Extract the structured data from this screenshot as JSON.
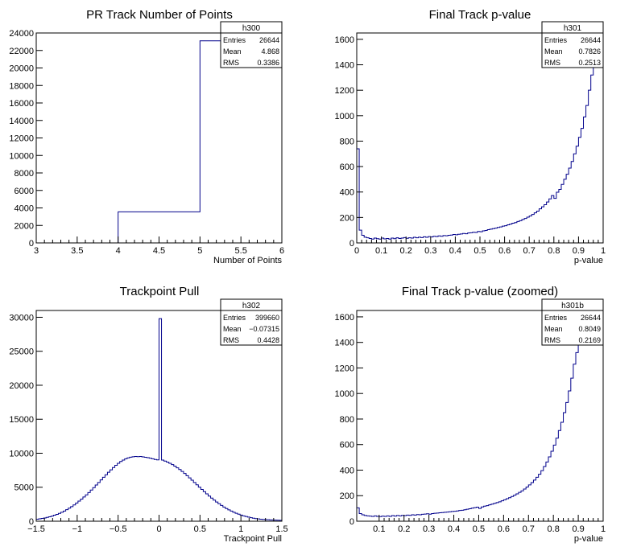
{
  "charts": [
    {
      "title": "PR Track Number of Points",
      "xlabel": "Number of Points",
      "stats": {
        "name": "h300",
        "rows": [
          [
            "Entries",
            "26644"
          ],
          [
            "Mean",
            "4.868"
          ],
          [
            "RMS",
            "0.3386"
          ]
        ]
      },
      "xlim": [
        3,
        6
      ],
      "ylim": [
        0,
        24000
      ],
      "xticks": [
        3,
        3.5,
        4,
        4.5,
        5,
        5.5,
        6
      ],
      "xtick_labels": [
        "3",
        "3.5",
        "4",
        "4.5",
        "5",
        "5.5",
        "6"
      ],
      "yticks": [
        0,
        2000,
        4000,
        6000,
        8000,
        10000,
        12000,
        14000,
        16000,
        18000,
        20000,
        22000,
        24000
      ],
      "ytick_labels": [
        "0",
        "2000",
        "4000",
        "6000",
        "8000",
        "10000",
        "12000",
        "14000",
        "16000",
        "18000",
        "20000",
        "22000",
        "24000"
      ]
    },
    {
      "title": "Final Track p-value",
      "xlabel": "p-value",
      "stats": {
        "name": "h301",
        "rows": [
          [
            "Entries",
            "26644"
          ],
          [
            "Mean",
            "0.7826"
          ],
          [
            "RMS",
            "0.2513"
          ]
        ]
      },
      "xlim": [
        0,
        1
      ],
      "ylim": [
        0,
        1650
      ],
      "xticks": [
        0,
        0.1,
        0.2,
        0.3,
        0.4,
        0.5,
        0.6,
        0.7,
        0.8,
        0.9,
        1
      ],
      "xtick_labels": [
        "0",
        "0.1",
        "0.2",
        "0.3",
        "0.4",
        "0.5",
        "0.6",
        "0.7",
        "0.8",
        "0.9",
        "1"
      ],
      "yticks": [
        0,
        200,
        400,
        600,
        800,
        1000,
        1200,
        1400,
        1600
      ],
      "ytick_labels": [
        "0",
        "200",
        "400",
        "600",
        "800",
        "1000",
        "1200",
        "1400",
        "1600"
      ]
    },
    {
      "title": "Trackpoint Pull",
      "xlabel": "Trackpoint Pull",
      "stats": {
        "name": "h302",
        "rows": [
          [
            "Entries",
            "399660"
          ],
          [
            "Mean",
            "−0.07315"
          ],
          [
            "RMS",
            "0.4428"
          ]
        ]
      },
      "xlim": [
        -1.5,
        1.5
      ],
      "ylim": [
        0,
        31000
      ],
      "xticks": [
        -1.5,
        -1,
        -0.5,
        0,
        0.5,
        1,
        1.5
      ],
      "xtick_labels": [
        "−1.5",
        "−1",
        "−0.5",
        "0",
        "0.5",
        "1",
        "1.5"
      ],
      "yticks": [
        0,
        5000,
        10000,
        15000,
        20000,
        25000,
        30000
      ],
      "ytick_labels": [
        "0",
        "5000",
        "10000",
        "15000",
        "20000",
        "25000",
        "30000"
      ]
    },
    {
      "title": "Final Track p-value (zoomed)",
      "xlabel": "p-value",
      "stats": {
        "name": "h301b",
        "rows": [
          [
            "Entries",
            "26644"
          ],
          [
            "Mean",
            "0.8049"
          ],
          [
            "RMS",
            "0.2169"
          ]
        ]
      },
      "xlim": [
        0.01,
        1
      ],
      "ylim": [
        0,
        1650
      ],
      "xticks": [
        0.1,
        0.2,
        0.3,
        0.4,
        0.5,
        0.6,
        0.7,
        0.8,
        0.9,
        1
      ],
      "xtick_labels": [
        "0.1",
        "0.2",
        "0.3",
        "0.4",
        "0.5",
        "0.6",
        "0.7",
        "0.8",
        "0.9",
        "1"
      ],
      "yticks": [
        0,
        200,
        400,
        600,
        800,
        1000,
        1200,
        1400,
        1600
      ],
      "ytick_labels": [
        "0",
        "200",
        "400",
        "600",
        "800",
        "1000",
        "1200",
        "1400",
        "1600"
      ]
    }
  ],
  "chart_data": [
    {
      "type": "bar",
      "title": "PR Track Number of Points",
      "xlabel": "Number of Points",
      "ylabel": "",
      "xlim": [
        3,
        6
      ],
      "ylim": [
        0,
        24000
      ],
      "bin_edges": [
        3,
        4,
        5,
        6
      ],
      "values": [
        0,
        3550,
        23100
      ],
      "color": "#00008b"
    },
    {
      "type": "bar",
      "title": "Final Track p-value",
      "xlabel": "p-value",
      "ylabel": "",
      "xlim": [
        0,
        1
      ],
      "ylim": [
        0,
        1650
      ],
      "color": "#00008b",
      "bin_edges": [
        0,
        0.01,
        0.02,
        0.03,
        0.04,
        0.05,
        0.06,
        0.07,
        0.08,
        0.09,
        0.1,
        0.11,
        0.12,
        0.13,
        0.14,
        0.15,
        0.16,
        0.17,
        0.18,
        0.19,
        0.2,
        0.21,
        0.22,
        0.23,
        0.24,
        0.25,
        0.26,
        0.27,
        0.28,
        0.29,
        0.3,
        0.31,
        0.32,
        0.33,
        0.34,
        0.35,
        0.36,
        0.37,
        0.38,
        0.39,
        0.4,
        0.41,
        0.42,
        0.43,
        0.44,
        0.45,
        0.46,
        0.47,
        0.48,
        0.49,
        0.5,
        0.51,
        0.52,
        0.53,
        0.54,
        0.55,
        0.56,
        0.57,
        0.58,
        0.59,
        0.6,
        0.61,
        0.62,
        0.63,
        0.64,
        0.65,
        0.66,
        0.67,
        0.68,
        0.69,
        0.7,
        0.71,
        0.72,
        0.73,
        0.74,
        0.75,
        0.76,
        0.77,
        0.78,
        0.79,
        0.8,
        0.81,
        0.82,
        0.83,
        0.84,
        0.85,
        0.86,
        0.87,
        0.88,
        0.89,
        0.9,
        0.91,
        0.92,
        0.93,
        0.94,
        0.95,
        0.96,
        0.97,
        0.98,
        0.99,
        1
      ],
      "values": [
        740,
        100,
        60,
        45,
        40,
        35,
        30,
        38,
        33,
        30,
        38,
        32,
        35,
        30,
        38,
        33,
        40,
        35,
        38,
        42,
        36,
        40,
        38,
        44,
        40,
        45,
        42,
        48,
        44,
        50,
        47,
        52,
        50,
        55,
        52,
        58,
        56,
        60,
        62,
        66,
        64,
        68,
        70,
        74,
        72,
        78,
        80,
        84,
        82,
        90,
        88,
        95,
        98,
        104,
        108,
        112,
        116,
        122,
        126,
        132,
        135,
        142,
        148,
        155,
        160,
        168,
        175,
        184,
        192,
        202,
        212,
        224,
        236,
        250,
        268,
        284,
        300,
        322,
        346,
        372,
        350,
        398,
        420,
        460,
        500,
        540,
        588,
        640,
        700,
        760,
        830,
        900,
        990,
        1080,
        1200,
        1320,
        1380,
        1420,
        1460,
        1500
      ]
    },
    {
      "type": "bar",
      "title": "Trackpoint Pull",
      "xlabel": "Trackpoint Pull",
      "ylabel": "",
      "xlim": [
        -1.5,
        1.5
      ],
      "ylim": [
        0,
        31000
      ],
      "color": "#00008b",
      "bin_edges": [
        -1.5,
        -1.47,
        -1.44,
        -1.41,
        -1.38,
        -1.35,
        -1.32,
        -1.29,
        -1.26,
        -1.23,
        -1.2,
        -1.17,
        -1.14,
        -1.11,
        -1.08,
        -1.05,
        -1.02,
        -0.99,
        -0.96,
        -0.93,
        -0.9,
        -0.87,
        -0.84,
        -0.81,
        -0.78,
        -0.75,
        -0.72,
        -0.69,
        -0.66,
        -0.63,
        -0.6,
        -0.57,
        -0.54,
        -0.51,
        -0.48,
        -0.45,
        -0.42,
        -0.39,
        -0.36,
        -0.33,
        -0.3,
        -0.27,
        -0.24,
        -0.21,
        -0.18,
        -0.15,
        -0.12,
        -0.09,
        -0.06,
        -0.03,
        0,
        0.03,
        0.06,
        0.09,
        0.12,
        0.15,
        0.18,
        0.21,
        0.24,
        0.27,
        0.3,
        0.33,
        0.36,
        0.39,
        0.42,
        0.45,
        0.48,
        0.51,
        0.54,
        0.57,
        0.6,
        0.63,
        0.66,
        0.69,
        0.72,
        0.75,
        0.78,
        0.81,
        0.84,
        0.87,
        0.9,
        0.93,
        0.96,
        0.99,
        1.02,
        1.05,
        1.08,
        1.11,
        1.14,
        1.17,
        1.2,
        1.23,
        1.26,
        1.29,
        1.32,
        1.35,
        1.38,
        1.41,
        1.44,
        1.47,
        1.5
      ],
      "values": [
        300,
        350,
        420,
        480,
        560,
        650,
        760,
        880,
        1000,
        1150,
        1320,
        1500,
        1700,
        1920,
        2150,
        2400,
        2680,
        2960,
        3250,
        3560,
        3880,
        4220,
        4580,
        4940,
        5320,
        5700,
        6080,
        6460,
        6840,
        7200,
        7560,
        7900,
        8220,
        8520,
        8780,
        9000,
        9180,
        9320,
        9420,
        9480,
        9520,
        9500,
        9520,
        9460,
        9400,
        9340,
        9280,
        9180,
        9080,
        9020,
        29800,
        9000,
        8850,
        8700,
        8520,
        8320,
        8100,
        7860,
        7600,
        7320,
        7020,
        6700,
        6380,
        6040,
        5700,
        5360,
        5020,
        4680,
        4350,
        4020,
        3700,
        3400,
        3110,
        2830,
        2570,
        2320,
        2090,
        1870,
        1670,
        1490,
        1320,
        1170,
        1030,
        900,
        790,
        690,
        600,
        520,
        450,
        390,
        340,
        300,
        270,
        240,
        215,
        195,
        175,
        160,
        145,
        130
      ]
    },
    {
      "type": "bar",
      "title": "Final Track p-value (zoomed)",
      "xlabel": "p-value",
      "ylabel": "",
      "xlim": [
        0.01,
        1
      ],
      "ylim": [
        0,
        1650
      ],
      "color": "#00008b",
      "bin_edges": [
        0.01,
        0.02,
        0.03,
        0.04,
        0.05,
        0.06,
        0.07,
        0.08,
        0.09,
        0.1,
        0.11,
        0.12,
        0.13,
        0.14,
        0.15,
        0.16,
        0.17,
        0.18,
        0.19,
        0.2,
        0.21,
        0.22,
        0.23,
        0.24,
        0.25,
        0.26,
        0.27,
        0.28,
        0.29,
        0.3,
        0.31,
        0.32,
        0.33,
        0.34,
        0.35,
        0.36,
        0.37,
        0.38,
        0.39,
        0.4,
        0.41,
        0.42,
        0.43,
        0.44,
        0.45,
        0.46,
        0.47,
        0.48,
        0.49,
        0.5,
        0.51,
        0.52,
        0.53,
        0.54,
        0.55,
        0.56,
        0.57,
        0.58,
        0.59,
        0.6,
        0.61,
        0.62,
        0.63,
        0.64,
        0.65,
        0.66,
        0.67,
        0.68,
        0.69,
        0.7,
        0.71,
        0.72,
        0.73,
        0.74,
        0.75,
        0.76,
        0.77,
        0.78,
        0.79,
        0.8,
        0.81,
        0.82,
        0.83,
        0.84,
        0.85,
        0.86,
        0.87,
        0.88,
        0.89,
        0.9,
        0.91,
        0.92,
        0.93,
        0.94,
        0.95,
        0.96,
        0.97,
        0.98,
        0.99,
        1
      ],
      "values": [
        105,
        60,
        50,
        45,
        42,
        40,
        38,
        42,
        38,
        36,
        40,
        38,
        42,
        38,
        44,
        40,
        45,
        42,
        46,
        44,
        48,
        46,
        50,
        48,
        52,
        50,
        54,
        56,
        58,
        55,
        60,
        62,
        64,
        66,
        68,
        70,
        72,
        74,
        76,
        78,
        80,
        84,
        86,
        90,
        94,
        98,
        102,
        106,
        110,
        100,
        112,
        118,
        122,
        128,
        134,
        140,
        146,
        152,
        160,
        168,
        176,
        184,
        194,
        204,
        214,
        226,
        238,
        252,
        268,
        284,
        302,
        322,
        344,
        368,
        396,
        428,
        464,
        504,
        548,
        596,
        650,
        710,
        775,
        850,
        930,
        1020,
        1120,
        1230,
        1320,
        1380,
        1420,
        1460,
        1500,
        1540,
        1580,
        1600,
        1620,
        1640,
        1650
      ]
    }
  ]
}
